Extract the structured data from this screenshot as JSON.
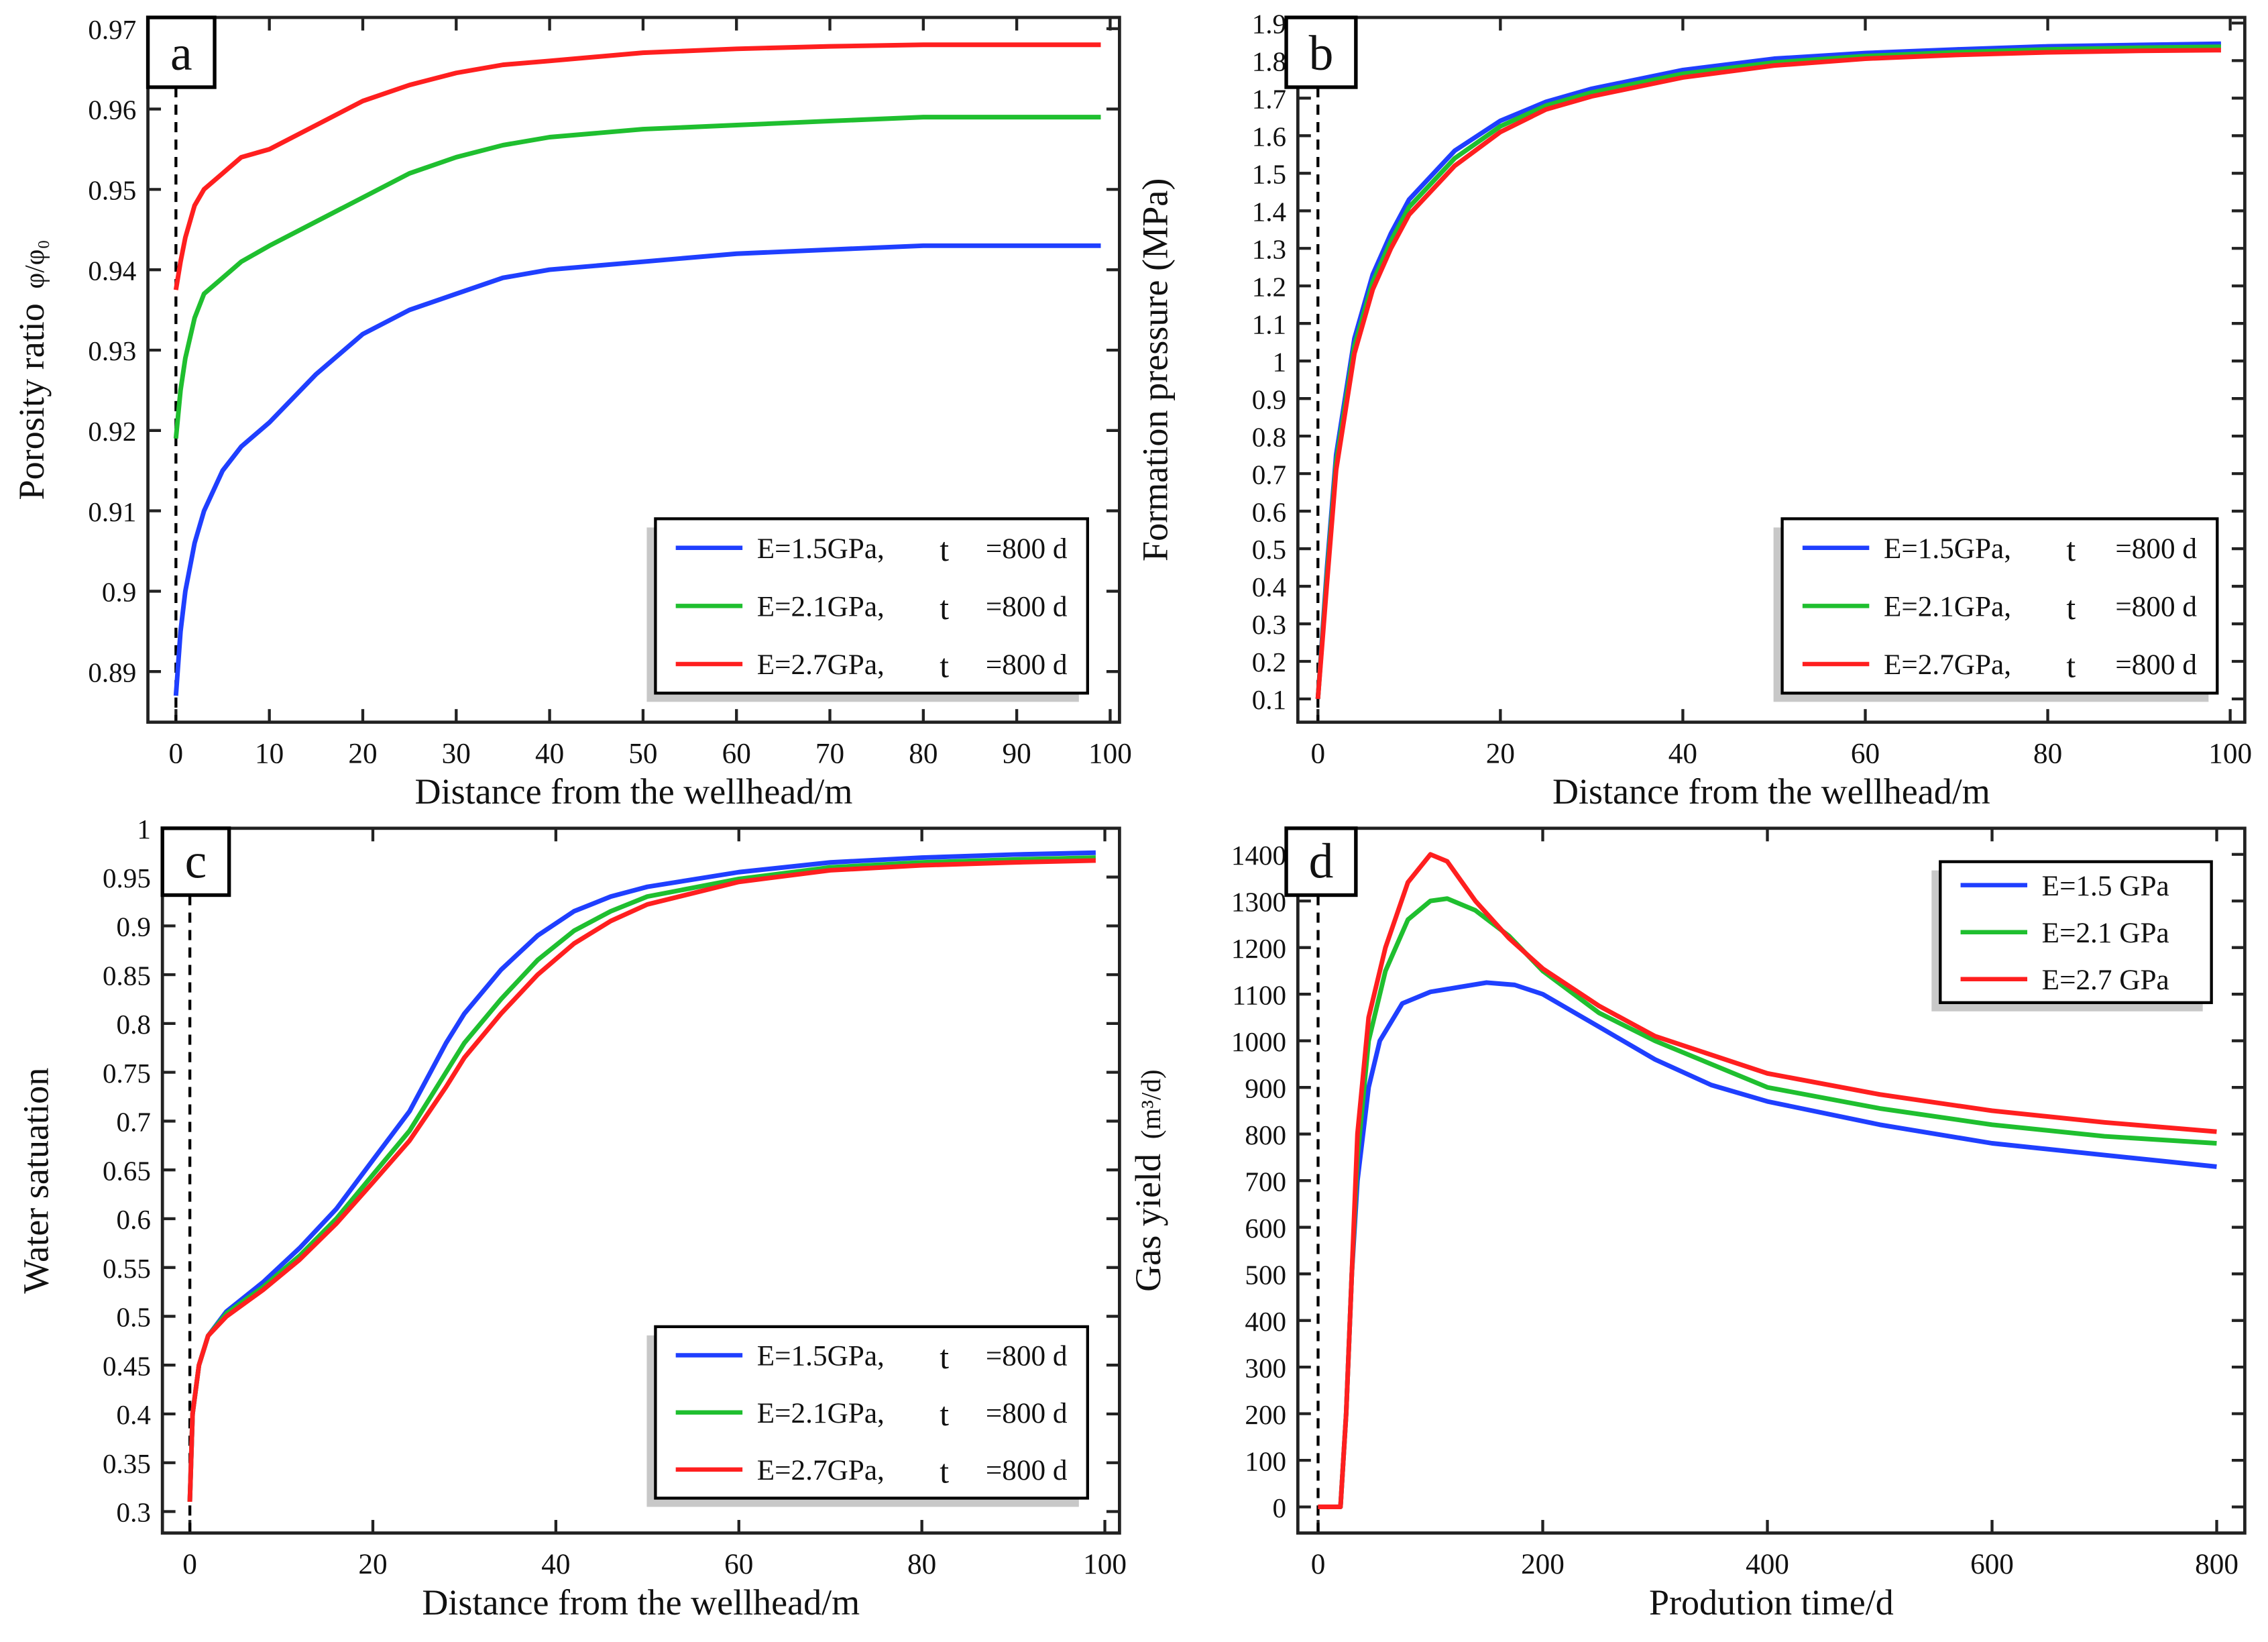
{
  "colors": {
    "blue": "#1f3fff",
    "green": "#1fbf2f",
    "red": "#ff1f1f",
    "axis": "#222222"
  },
  "chart_data": [
    {
      "type": "line",
      "panel_label": "a",
      "xlabel": "Distance from the wellhead/m",
      "ylabel": "Porosity ratio",
      "ylabel_symbol": "φ/φ₀",
      "xlim": [
        -3,
        101
      ],
      "ylim": [
        0.8837,
        0.9714
      ],
      "xticks": [
        0,
        10,
        20,
        30,
        40,
        50,
        60,
        70,
        80,
        90,
        100
      ],
      "yticks": [
        0.89,
        0.9,
        0.91,
        0.92,
        0.93,
        0.94,
        0.95,
        0.96,
        0.97
      ],
      "ytick_labels": [
        "0.89",
        "0.9",
        "0.91",
        "0.92",
        "0.93",
        "0.94",
        "0.95",
        "0.96",
        "0.97"
      ],
      "legend_position": "bottom-right",
      "series": [
        {
          "name": "E=1.5GPa,",
          "t": "t",
          "tval": "=800 d",
          "color": "blue",
          "x": [
            0,
            0.5,
            1,
            2,
            3,
            5,
            7,
            10,
            15,
            20,
            25,
            30,
            35,
            40,
            50,
            60,
            70,
            80,
            90,
            99
          ],
          "y": [
            0.887,
            0.895,
            0.9,
            0.906,
            0.91,
            0.915,
            0.918,
            0.921,
            0.927,
            0.932,
            0.935,
            0.937,
            0.939,
            0.94,
            0.941,
            0.942,
            0.9425,
            0.943,
            0.943,
            0.943
          ]
        },
        {
          "name": "E=2.1GPa,",
          "t": "t",
          "tval": "=800 d",
          "color": "green",
          "x": [
            0,
            0.5,
            1,
            2,
            3,
            5,
            7,
            10,
            15,
            20,
            25,
            30,
            35,
            40,
            50,
            60,
            70,
            80,
            90,
            99
          ],
          "y": [
            0.919,
            0.925,
            0.929,
            0.934,
            0.937,
            0.939,
            0.941,
            0.943,
            0.946,
            0.949,
            0.952,
            0.954,
            0.9555,
            0.9565,
            0.9575,
            0.958,
            0.9585,
            0.959,
            0.959,
            0.959
          ]
        },
        {
          "name": "E=2.7GPa,",
          "t": "t",
          "tval": "=800 d",
          "color": "red",
          "x": [
            0,
            0.5,
            1,
            2,
            3,
            5,
            7,
            10,
            15,
            20,
            25,
            30,
            35,
            40,
            50,
            60,
            70,
            80,
            90,
            99
          ],
          "y": [
            0.9375,
            0.941,
            0.944,
            0.948,
            0.95,
            0.952,
            0.954,
            0.955,
            0.958,
            0.961,
            0.963,
            0.9645,
            0.9655,
            0.966,
            0.967,
            0.9675,
            0.9678,
            0.968,
            0.968,
            0.968
          ]
        }
      ]
    },
    {
      "type": "line",
      "panel_label": "b",
      "xlabel": "Distance from the wellhead/m",
      "ylabel": "Formation pressure (MPa)",
      "ylabel_symbol": "",
      "xlim": [
        -2.2,
        101.6
      ],
      "ylim": [
        0.038,
        1.915
      ],
      "xticks": [
        0,
        20,
        40,
        60,
        80,
        100
      ],
      "yticks": [
        0.1,
        0.2,
        0.3,
        0.4,
        0.5,
        0.6,
        0.7,
        0.8,
        0.9,
        1,
        1.1,
        1.2,
        1.3,
        1.4,
        1.5,
        1.6,
        1.7,
        1.8,
        1.9
      ],
      "ytick_labels": [
        "0.1",
        "0.2",
        "0.3",
        "0.4",
        "0.5",
        "0.6",
        "0.7",
        "0.8",
        "0.9",
        "1",
        "1.1",
        "1.2",
        "1.3",
        "1.4",
        "1.5",
        "1.6",
        "1.7",
        "1.8",
        "1.9"
      ],
      "legend_position": "bottom-right",
      "series": [
        {
          "name": "E=1.5GPa,",
          "t": "t",
          "tval": "=800 d",
          "color": "blue",
          "x": [
            0,
            1,
            2,
            4,
            6,
            8,
            10,
            15,
            20,
            25,
            30,
            40,
            50,
            60,
            70,
            80,
            90,
            99
          ],
          "y": [
            0.1,
            0.45,
            0.75,
            1.06,
            1.23,
            1.34,
            1.43,
            1.56,
            1.64,
            1.69,
            1.725,
            1.775,
            1.805,
            1.82,
            1.83,
            1.838,
            1.842,
            1.845
          ]
        },
        {
          "name": "E=2.1GPa,",
          "t": "t",
          "tval": "=800 d",
          "color": "green",
          "x": [
            0,
            1,
            2,
            4,
            6,
            8,
            10,
            15,
            20,
            25,
            30,
            40,
            50,
            60,
            70,
            80,
            90,
            99
          ],
          "y": [
            0.1,
            0.43,
            0.73,
            1.04,
            1.21,
            1.32,
            1.41,
            1.54,
            1.625,
            1.68,
            1.715,
            1.765,
            1.795,
            1.812,
            1.822,
            1.83,
            1.834,
            1.837
          ]
        },
        {
          "name": "E=2.7GPa,",
          "t": "t",
          "tval": "=800 d",
          "color": "red",
          "x": [
            0,
            1,
            2,
            4,
            6,
            8,
            10,
            15,
            20,
            25,
            30,
            40,
            50,
            60,
            70,
            80,
            90,
            99
          ],
          "y": [
            0.1,
            0.41,
            0.71,
            1.02,
            1.19,
            1.3,
            1.39,
            1.52,
            1.61,
            1.67,
            1.705,
            1.755,
            1.787,
            1.805,
            1.815,
            1.822,
            1.826,
            1.828
          ]
        }
      ]
    },
    {
      "type": "line",
      "panel_label": "c",
      "xlabel": "Distance from the wellhead/m",
      "ylabel": "Water satuation",
      "ylabel_symbol": "",
      "xlim": [
        -3,
        101.6
      ],
      "ylim": [
        0.278,
        1.0
      ],
      "xticks": [
        0,
        20,
        40,
        60,
        80,
        100
      ],
      "yticks": [
        0.3,
        0.35,
        0.4,
        0.45,
        0.5,
        0.55,
        0.6,
        0.65,
        0.7,
        0.75,
        0.8,
        0.85,
        0.9,
        0.95,
        1
      ],
      "ytick_labels": [
        "0.3",
        "0.35",
        "0.4",
        "0.45",
        "0.5",
        "0.55",
        "0.6",
        "0.65",
        "0.7",
        "0.75",
        "0.8",
        "0.85",
        "0.9",
        "0.95",
        "1"
      ],
      "legend_position": "bottom-right",
      "series": [
        {
          "name": "E=1.5GPa,",
          "t": "t",
          "tval": "=800 d",
          "color": "blue",
          "x": [
            0,
            0.3,
            1,
            2,
            4,
            8,
            12,
            16,
            20,
            24,
            28,
            30,
            34,
            38,
            42,
            46,
            50,
            60,
            70,
            80,
            90,
            99
          ],
          "y": [
            0.31,
            0.4,
            0.45,
            0.48,
            0.505,
            0.535,
            0.57,
            0.61,
            0.66,
            0.71,
            0.78,
            0.81,
            0.855,
            0.89,
            0.915,
            0.93,
            0.94,
            0.955,
            0.965,
            0.97,
            0.973,
            0.975
          ]
        },
        {
          "name": "E=2.1GPa,",
          "t": "t",
          "tval": "=800 d",
          "color": "green",
          "x": [
            0,
            0.3,
            1,
            2,
            4,
            8,
            12,
            16,
            20,
            24,
            28,
            30,
            34,
            38,
            42,
            46,
            50,
            60,
            70,
            80,
            90,
            99
          ],
          "y": [
            0.31,
            0.4,
            0.45,
            0.48,
            0.503,
            0.53,
            0.562,
            0.6,
            0.645,
            0.69,
            0.75,
            0.78,
            0.825,
            0.865,
            0.895,
            0.915,
            0.93,
            0.948,
            0.96,
            0.965,
            0.968,
            0.97
          ]
        },
        {
          "name": "E=2.7GPa,",
          "t": "t",
          "tval": "=800 d",
          "color": "red",
          "x": [
            0,
            0.3,
            1,
            2,
            4,
            8,
            12,
            16,
            20,
            24,
            28,
            30,
            34,
            38,
            42,
            46,
            50,
            60,
            70,
            80,
            90,
            99
          ],
          "y": [
            0.31,
            0.4,
            0.45,
            0.48,
            0.5,
            0.527,
            0.558,
            0.595,
            0.637,
            0.68,
            0.735,
            0.765,
            0.81,
            0.85,
            0.882,
            0.905,
            0.922,
            0.945,
            0.957,
            0.962,
            0.965,
            0.967
          ]
        }
      ]
    },
    {
      "type": "line",
      "panel_label": "d",
      "xlabel": "Prodution time/d",
      "ylabel": "Gas yield",
      "ylabel_symbol": "(m³/d)",
      "xlim": [
        -18,
        825
      ],
      "ylim": [
        -56,
        1456
      ],
      "xticks": [
        0,
        200,
        400,
        600,
        800
      ],
      "yticks": [
        0,
        100,
        200,
        300,
        400,
        500,
        600,
        700,
        800,
        900,
        1000,
        1100,
        1200,
        1300,
        1400
      ],
      "ytick_labels": [
        "0",
        "100",
        "200",
        "300",
        "400",
        "500",
        "600",
        "700",
        "800",
        "900",
        "1000",
        "1100",
        "1200",
        "1300",
        "1400"
      ],
      "legend_position": "top-right",
      "series": [
        {
          "name": "E=1.5 GPa",
          "color": "blue",
          "x": [
            0,
            20,
            25,
            30,
            35,
            45,
            55,
            75,
            100,
            125,
            150,
            175,
            200,
            250,
            300,
            350,
            400,
            500,
            600,
            700,
            800
          ],
          "y": [
            0,
            0,
            200,
            500,
            700,
            900,
            1000,
            1080,
            1105,
            1115,
            1125,
            1120,
            1100,
            1030,
            960,
            905,
            870,
            820,
            780,
            755,
            730
          ]
        },
        {
          "name": "E=2.1 GPa",
          "color": "green",
          "x": [
            0,
            20,
            25,
            30,
            35,
            45,
            60,
            80,
            100,
            115,
            140,
            170,
            200,
            250,
            300,
            400,
            500,
            600,
            700,
            800
          ],
          "y": [
            0,
            0,
            200,
            500,
            750,
            1000,
            1150,
            1260,
            1300,
            1305,
            1280,
            1225,
            1150,
            1060,
            1000,
            900,
            855,
            820,
            795,
            780
          ]
        },
        {
          "name": "E=2.7 GPa",
          "color": "red",
          "x": [
            0,
            20,
            25,
            30,
            35,
            45,
            60,
            80,
            100,
            115,
            140,
            170,
            200,
            250,
            300,
            400,
            500,
            600,
            700,
            800
          ],
          "y": [
            0,
            0,
            200,
            500,
            800,
            1050,
            1200,
            1340,
            1400,
            1385,
            1300,
            1220,
            1155,
            1075,
            1010,
            930,
            885,
            850,
            825,
            805
          ]
        }
      ]
    }
  ]
}
